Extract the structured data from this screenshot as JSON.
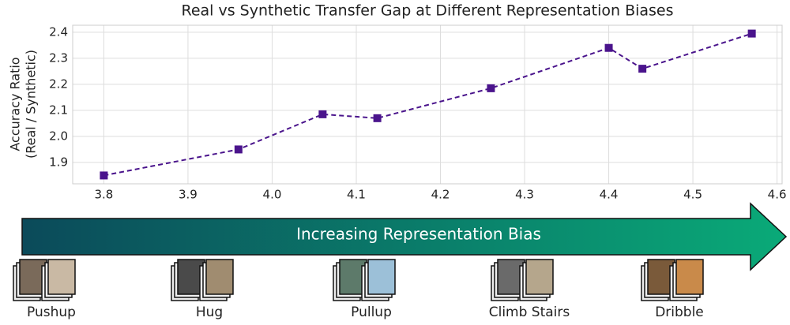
{
  "chart_data": {
    "type": "line",
    "title": "Real vs Synthetic Transfer Gap at Different Representation Biases",
    "y_label": [
      "Accuracy Ratio",
      "(Real / Synthetic)"
    ],
    "x": [
      3.8,
      3.96,
      4.06,
      4.125,
      4.26,
      4.4,
      4.44,
      4.57
    ],
    "series": [
      {
        "color": "#4a148c",
        "values": [
          1.85,
          1.95,
          2.085,
          2.07,
          2.185,
          2.34,
          2.26,
          2.395
        ]
      }
    ],
    "xlim": [
      3.763,
      4.606
    ],
    "ylim": [
      1.818,
      2.427
    ],
    "xticks": [
      3.8,
      3.9,
      {
        "value": 4,
        "label": "4.0"
      },
      4.1,
      4.2,
      4.3,
      4.4,
      4.5,
      4.6
    ],
    "yticks": [
      1.9,
      {
        "value": 2,
        "label": "2.0"
      },
      2.1,
      2.2,
      2.3,
      2.4
    ],
    "grid": true,
    "line_style": "dashed",
    "marker": "square"
  },
  "arrow_label": "Increasing Representation Bias",
  "actions": [
    "Pushup",
    "Hug",
    "Pullup",
    "Climb Stairs",
    "Dribble"
  ]
}
